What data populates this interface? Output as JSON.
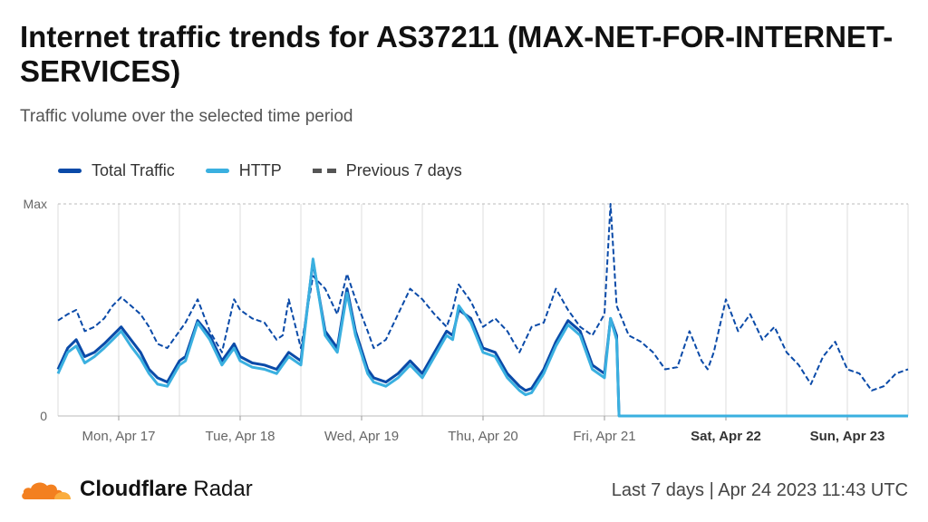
{
  "header": {
    "title": "Internet traffic trends for AS37211 (MAX-NET-FOR-INTERNET-SERVICES)",
    "subtitle": "Traffic volume over the selected time period"
  },
  "legend": [
    {
      "label": "Total Traffic",
      "color": "#0a4aa8",
      "style": "solid"
    },
    {
      "label": "HTTP",
      "color": "#3ab0e0",
      "style": "solid"
    },
    {
      "label": "Previous 7 days",
      "color": "#555555",
      "style": "dashed"
    }
  ],
  "footer": {
    "brand_bold": "Cloudflare",
    "brand_rest": " Radar",
    "period": "Last 7 days | Apr 24 2023 11:43 UTC"
  },
  "chart_data": {
    "type": "line",
    "title": "Internet traffic trends for AS37211 (MAX-NET-FOR-INTERNET-SERVICES)",
    "subtitle": "Traffic volume over the selected time period",
    "y_ticks": [
      "Max",
      "0"
    ],
    "ylim": [
      0,
      1
    ],
    "x_ticks": [
      {
        "label": "Mon, Apr 17",
        "bold": false
      },
      {
        "label": "Tue, Apr 18",
        "bold": false
      },
      {
        "label": "Wed, Apr 19",
        "bold": false
      },
      {
        "label": "Thu, Apr 20",
        "bold": false
      },
      {
        "label": "Fri, Apr 21",
        "bold": false
      },
      {
        "label": "Sat, Apr 22",
        "bold": true
      },
      {
        "label": "Sun, Apr 23",
        "bold": true
      }
    ],
    "x_range_days": [
      0,
      7
    ],
    "grid": true,
    "legend_position": "top-left",
    "series": [
      {
        "name": "Previous 7 days",
        "color": "#0a4aa8",
        "style": "dashed",
        "x": [
          0,
          0.08,
          0.15,
          0.22,
          0.3,
          0.38,
          0.45,
          0.52,
          0.6,
          0.68,
          0.75,
          0.82,
          0.9,
          1.0,
          1.05,
          1.15,
          1.25,
          1.35,
          1.45,
          1.5,
          1.6,
          1.7,
          1.8,
          1.85,
          1.9,
          2.0,
          2.1,
          2.2,
          2.3,
          2.38,
          2.45,
          2.55,
          2.6,
          2.7,
          2.8,
          2.9,
          3.0,
          3.1,
          3.2,
          3.25,
          3.3,
          3.4,
          3.5,
          3.6,
          3.7,
          3.8,
          3.85,
          3.9,
          4.0,
          4.1,
          4.2,
          4.3,
          4.4,
          4.5,
          4.55,
          4.6,
          4.7,
          4.8,
          4.9,
          5.0,
          5.1,
          5.2,
          5.3,
          5.35,
          5.4,
          5.5,
          5.6,
          5.7,
          5.8,
          5.9,
          6.0,
          6.1,
          6.2,
          6.3,
          6.4,
          6.5,
          6.6,
          6.7,
          6.8,
          6.9,
          7.0
        ],
        "values": [
          0.45,
          0.48,
          0.5,
          0.4,
          0.42,
          0.46,
          0.52,
          0.56,
          0.52,
          0.48,
          0.42,
          0.34,
          0.32,
          0.4,
          0.44,
          0.55,
          0.4,
          0.3,
          0.55,
          0.5,
          0.46,
          0.44,
          0.36,
          0.38,
          0.55,
          0.32,
          0.66,
          0.6,
          0.48,
          0.67,
          0.55,
          0.4,
          0.32,
          0.36,
          0.48,
          0.6,
          0.55,
          0.48,
          0.42,
          0.5,
          0.62,
          0.54,
          0.42,
          0.46,
          0.4,
          0.3,
          0.36,
          0.42,
          0.44,
          0.6,
          0.5,
          0.42,
          0.38,
          0.48,
          1.0,
          0.52,
          0.38,
          0.35,
          0.3,
          0.22,
          0.23,
          0.4,
          0.26,
          0.22,
          0.3,
          0.55,
          0.4,
          0.48,
          0.36,
          0.42,
          0.3,
          0.24,
          0.15,
          0.28,
          0.35,
          0.22,
          0.2,
          0.12,
          0.14,
          0.2,
          0.22
        ]
      },
      {
        "name": "Total Traffic",
        "color": "#0a4aa8",
        "style": "solid",
        "x": [
          0,
          0.08,
          0.15,
          0.22,
          0.3,
          0.38,
          0.45,
          0.52,
          0.6,
          0.68,
          0.75,
          0.82,
          0.9,
          1.0,
          1.05,
          1.15,
          1.25,
          1.35,
          1.45,
          1.5,
          1.6,
          1.7,
          1.8,
          1.85,
          1.9,
          2.0,
          2.1,
          2.2,
          2.3,
          2.38,
          2.45,
          2.55,
          2.6,
          2.7,
          2.8,
          2.9,
          3.0,
          3.1,
          3.2,
          3.25,
          3.3,
          3.4,
          3.5,
          3.6,
          3.7,
          3.8,
          3.85,
          3.9,
          4.0,
          4.1,
          4.2,
          4.3,
          4.4,
          4.5,
          4.55,
          4.6,
          4.62
        ],
        "values": [
          0.22,
          0.32,
          0.36,
          0.28,
          0.3,
          0.34,
          0.38,
          0.42,
          0.36,
          0.3,
          0.22,
          0.18,
          0.16,
          0.26,
          0.28,
          0.45,
          0.38,
          0.26,
          0.34,
          0.28,
          0.25,
          0.24,
          0.22,
          0.26,
          0.3,
          0.26,
          0.73,
          0.4,
          0.32,
          0.6,
          0.4,
          0.22,
          0.18,
          0.16,
          0.2,
          0.26,
          0.2,
          0.3,
          0.4,
          0.38,
          0.5,
          0.46,
          0.32,
          0.3,
          0.2,
          0.14,
          0.12,
          0.13,
          0.22,
          0.35,
          0.45,
          0.4,
          0.24,
          0.2,
          0.46,
          0.38,
          0.0
        ]
      },
      {
        "name": "HTTP",
        "color": "#3ab0e0",
        "style": "solid",
        "x": [
          0,
          0.08,
          0.15,
          0.22,
          0.3,
          0.38,
          0.45,
          0.52,
          0.6,
          0.68,
          0.75,
          0.82,
          0.9,
          1.0,
          1.05,
          1.15,
          1.25,
          1.35,
          1.45,
          1.5,
          1.6,
          1.7,
          1.8,
          1.85,
          1.9,
          2.0,
          2.1,
          2.2,
          2.3,
          2.38,
          2.45,
          2.55,
          2.6,
          2.7,
          2.8,
          2.9,
          3.0,
          3.1,
          3.2,
          3.25,
          3.3,
          3.4,
          3.5,
          3.6,
          3.7,
          3.8,
          3.85,
          3.9,
          4.0,
          4.1,
          4.2,
          4.3,
          4.4,
          4.5,
          4.55,
          4.6,
          4.62,
          7.0
        ],
        "values": [
          0.2,
          0.3,
          0.33,
          0.25,
          0.28,
          0.32,
          0.36,
          0.4,
          0.33,
          0.27,
          0.2,
          0.15,
          0.14,
          0.24,
          0.26,
          0.44,
          0.36,
          0.24,
          0.32,
          0.26,
          0.23,
          0.22,
          0.2,
          0.24,
          0.28,
          0.24,
          0.74,
          0.38,
          0.3,
          0.58,
          0.38,
          0.2,
          0.16,
          0.14,
          0.18,
          0.24,
          0.18,
          0.28,
          0.38,
          0.36,
          0.52,
          0.44,
          0.3,
          0.28,
          0.18,
          0.12,
          0.1,
          0.11,
          0.2,
          0.33,
          0.43,
          0.38,
          0.22,
          0.18,
          0.46,
          0.36,
          0.0,
          0.0
        ]
      }
    ]
  }
}
